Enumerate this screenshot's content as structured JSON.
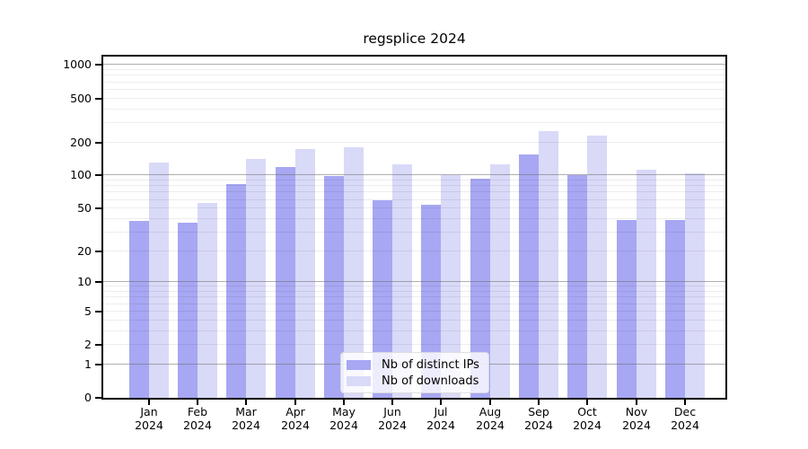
{
  "title": "regsplice 2024",
  "chart_data": {
    "type": "bar",
    "title": "regsplice 2024",
    "categories": [
      "Jan",
      "Feb",
      "Mar",
      "Apr",
      "May",
      "Jun",
      "Jul",
      "Aug",
      "Sep",
      "Oct",
      "Nov",
      "Dec"
    ],
    "category_year": "2024",
    "series": [
      {
        "name": "Nb of distinct IPs",
        "color": "#a7a7f3",
        "values": [
          39,
          38,
          85,
          121,
          100,
          61,
          55,
          95,
          157,
          102,
          40,
          40
        ]
      },
      {
        "name": "Nb of downloads",
        "color": "#d9d9f8",
        "values": [
          135,
          57,
          143,
          176,
          183,
          128,
          102,
          129,
          260,
          233,
          115,
          107
        ]
      }
    ],
    "yscale": "log10(value+1)",
    "yticks": [
      0,
      1,
      2,
      5,
      10,
      20,
      50,
      100,
      200,
      500,
      1000
    ],
    "minor_gridlines": [
      2,
      3,
      4,
      5,
      6,
      7,
      8,
      9,
      20,
      30,
      40,
      50,
      60,
      70,
      80,
      90,
      200,
      300,
      400,
      500,
      600,
      700,
      800,
      900
    ],
    "ylim": [
      0,
      1200
    ],
    "xlabel": "",
    "ylabel": "",
    "legend_position": "lower center",
    "grid": "horizontal major+minor"
  },
  "legend": {
    "items": [
      {
        "label": "Nb of distinct IPs",
        "color": "#a7a7f3"
      },
      {
        "label": "Nb of downloads",
        "color": "#d9d9f8"
      }
    ]
  },
  "colors": {
    "distinct_ips": "#a7a7f3",
    "downloads": "#d9d9f8",
    "axis": "#000000",
    "background": "#ffffff"
  }
}
